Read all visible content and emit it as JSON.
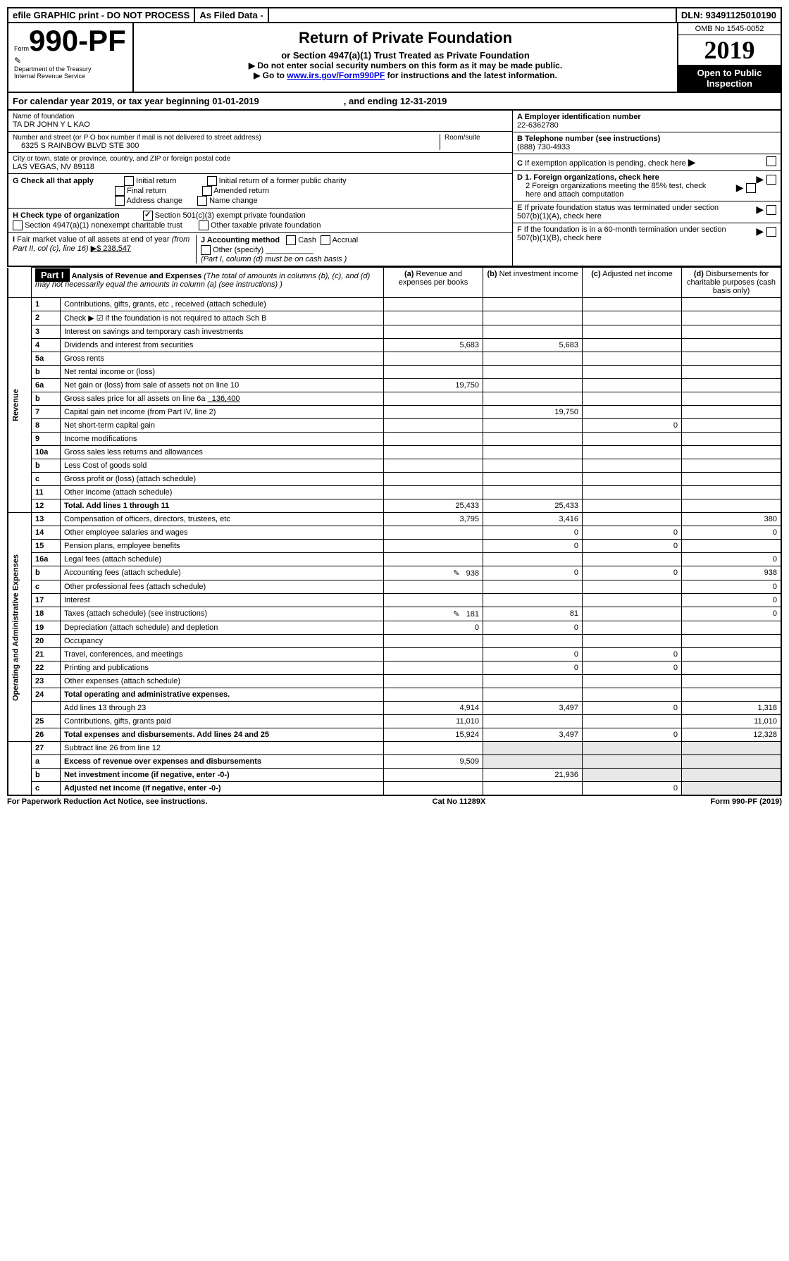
{
  "top": {
    "efile": "efile GRAPHIC print - DO NOT PROCESS",
    "asfiledata": "As Filed Data -",
    "dln": "DLN: 93491125010190"
  },
  "header": {
    "form_prefix": "Form",
    "form_num": "990-PF",
    "dept": "Department of the Treasury",
    "irs": "Internal Revenue Service",
    "title": "Return of Private Foundation",
    "sub": "or Section 4947(a)(1) Trust Treated as Private Foundation",
    "arrow1": "▶ Do not enter social security numbers on this form as it may be made public.",
    "arrow2": "▶ Go to ",
    "link": "www.irs.gov/Form990PF",
    "arrow2b": " for instructions and the latest information.",
    "omb": "OMB No 1545-0052",
    "year": "2019",
    "inspect": "Open to Public Inspection"
  },
  "cy": {
    "txt": "For calendar year 2019, or tax year beginning 01-01-2019",
    "and": ", and ending 12-31-2019"
  },
  "info": {
    "name_lbl": "Name of foundation",
    "name": "TA DR JOHN Y L KAO",
    "addr_lbl": "Number and street (or P O  box number if mail is not delivered to street address)",
    "addr": "6325 S RAINBOW BLVD STE 300",
    "room": "Room/suite",
    "city_lbl": "City or town, state or province, country, and ZIP or foreign postal code",
    "city": "LAS VEGAS, NV  89118",
    "A": "A Employer identification number",
    "A_val": "22-6362780",
    "B": "B Telephone number (see instructions)",
    "B_val": "(888) 730-4933",
    "C": "C If exemption application is pending, check here",
    "G": "G Check all that apply",
    "g1": "Initial return",
    "g2": "Initial return of a former public charity",
    "g3": "Final return",
    "g4": "Amended return",
    "g5": "Address change",
    "g6": "Name change",
    "D1": "D 1. Foreign organizations, check here",
    "D2": "2 Foreign organizations meeting the 85% test, check here and attach computation",
    "H": "H Check type of organization",
    "h1": "Section 501(c)(3) exempt private foundation",
    "h2": "Section 4947(a)(1) nonexempt charitable trust",
    "h3": "Other taxable private foundation",
    "E": "E  If private foundation status was terminated under section 507(b)(1)(A), check here",
    "I": "I Fair market value of all assets at end of year (from Part II, col  (c), line 16)",
    "I_val": "▶$  238,547",
    "J": "J Accounting method",
    "j1": "Cash",
    "j2": "Accrual",
    "j3": "Other (specify)",
    "j4": "(Part I, column (d) must be on cash basis )",
    "F": "F  If the foundation is in a 60-month termination under section 507(b)(1)(B), check here"
  },
  "p1": {
    "hdr": "Part I",
    "title": "Analysis of Revenue and Expenses",
    "note": "(The total of amounts in columns (b), (c), and (d) may not necessarily equal the amounts in column (a) (see instructions) )",
    "cols": {
      "a": "(a)",
      "a2": "Revenue and expenses per books",
      "b": "(b)",
      "b2": "Net investment income",
      "c": "(c)",
      "c2": "Adjusted net income",
      "d": "(d)",
      "d2": "Disbursements for charitable purposes (cash basis only)"
    },
    "rev": "Revenue",
    "opex": "Operating and Administrative Expenses",
    "rows": [
      {
        "n": "1",
        "t": "Contributions, gifts, grants, etc , received (attach schedule)"
      },
      {
        "n": "2",
        "t": "Check ▶ ☑ if the foundation is not required to attach Sch  B"
      },
      {
        "n": "3",
        "t": "Interest on savings and temporary cash investments"
      },
      {
        "n": "4",
        "t": "Dividends and interest from securities",
        "a": "5,683",
        "b": "5,683"
      },
      {
        "n": "5a",
        "t": "Gross rents"
      },
      {
        "n": "b",
        "t": "Net rental income or (loss)"
      },
      {
        "n": "6a",
        "t": "Net gain or (loss) from sale of assets not on line 10",
        "a": "19,750"
      },
      {
        "n": "b",
        "t": "Gross sales price for all assets on line 6a",
        "extra": "136,400"
      },
      {
        "n": "7",
        "t": "Capital gain net income (from Part IV, line 2)",
        "b": "19,750"
      },
      {
        "n": "8",
        "t": "Net short-term capital gain",
        "c": "0"
      },
      {
        "n": "9",
        "t": "Income modifications"
      },
      {
        "n": "10a",
        "t": "Gross sales less returns and allowances"
      },
      {
        "n": "b",
        "t": "Less  Cost of goods sold"
      },
      {
        "n": "c",
        "t": "Gross profit or (loss) (attach schedule)"
      },
      {
        "n": "11",
        "t": "Other income (attach schedule)"
      },
      {
        "n": "12",
        "t": "Total. Add lines 1 through 11",
        "bold": true,
        "a": "25,433",
        "b": "25,433"
      }
    ],
    "exp": [
      {
        "n": "13",
        "t": "Compensation of officers, directors, trustees, etc",
        "a": "3,795",
        "b": "3,416",
        "d": "380"
      },
      {
        "n": "14",
        "t": "Other employee salaries and wages",
        "b": "0",
        "c": "0",
        "d": "0"
      },
      {
        "n": "15",
        "t": "Pension plans, employee benefits",
        "b": "0",
        "c": "0"
      },
      {
        "n": "16a",
        "t": "Legal fees (attach schedule)",
        "d": "0"
      },
      {
        "n": "b",
        "t": "Accounting fees (attach schedule)",
        "icon": true,
        "a": "938",
        "b": "0",
        "c": "0",
        "d": "938"
      },
      {
        "n": "c",
        "t": "Other professional fees (attach schedule)",
        "d": "0"
      },
      {
        "n": "17",
        "t": "Interest",
        "d": "0"
      },
      {
        "n": "18",
        "t": "Taxes (attach schedule) (see instructions)",
        "icon": true,
        "a": "181",
        "b": "81",
        "d": "0"
      },
      {
        "n": "19",
        "t": "Depreciation (attach schedule) and depletion",
        "a": "0",
        "b": "0"
      },
      {
        "n": "20",
        "t": "Occupancy"
      },
      {
        "n": "21",
        "t": "Travel, conferences, and meetings",
        "b": "0",
        "c": "0"
      },
      {
        "n": "22",
        "t": "Printing and publications",
        "b": "0",
        "c": "0"
      },
      {
        "n": "23",
        "t": "Other expenses (attach schedule)"
      },
      {
        "n": "24",
        "t": "Total operating and administrative expenses.",
        "bold": true
      },
      {
        "n": "",
        "t": "Add lines 13 through 23",
        "a": "4,914",
        "b": "3,497",
        "c": "0",
        "d": "1,318"
      },
      {
        "n": "25",
        "t": "Contributions, gifts, grants paid",
        "a": "11,010",
        "d": "11,010"
      },
      {
        "n": "26",
        "t": "Total expenses and disbursements. Add lines 24 and 25",
        "bold": true,
        "a": "15,924",
        "b": "3,497",
        "c": "0",
        "d": "12,328"
      }
    ],
    "last": [
      {
        "n": "27",
        "t": "Subtract line 26 from line 12"
      },
      {
        "n": "a",
        "t": "Excess of revenue over expenses and disbursements",
        "bold": true,
        "a": "9,509"
      },
      {
        "n": "b",
        "t": "Net investment income (if negative, enter -0-)",
        "bold": true,
        "b": "21,936"
      },
      {
        "n": "c",
        "t": "Adjusted net income (if negative, enter -0-)",
        "bold": true,
        "c": "0"
      }
    ]
  },
  "footer": {
    "left": "For Paperwork Reduction Act Notice, see instructions.",
    "mid": "Cat  No  11289X",
    "right": "Form 990-PF (2019)"
  }
}
